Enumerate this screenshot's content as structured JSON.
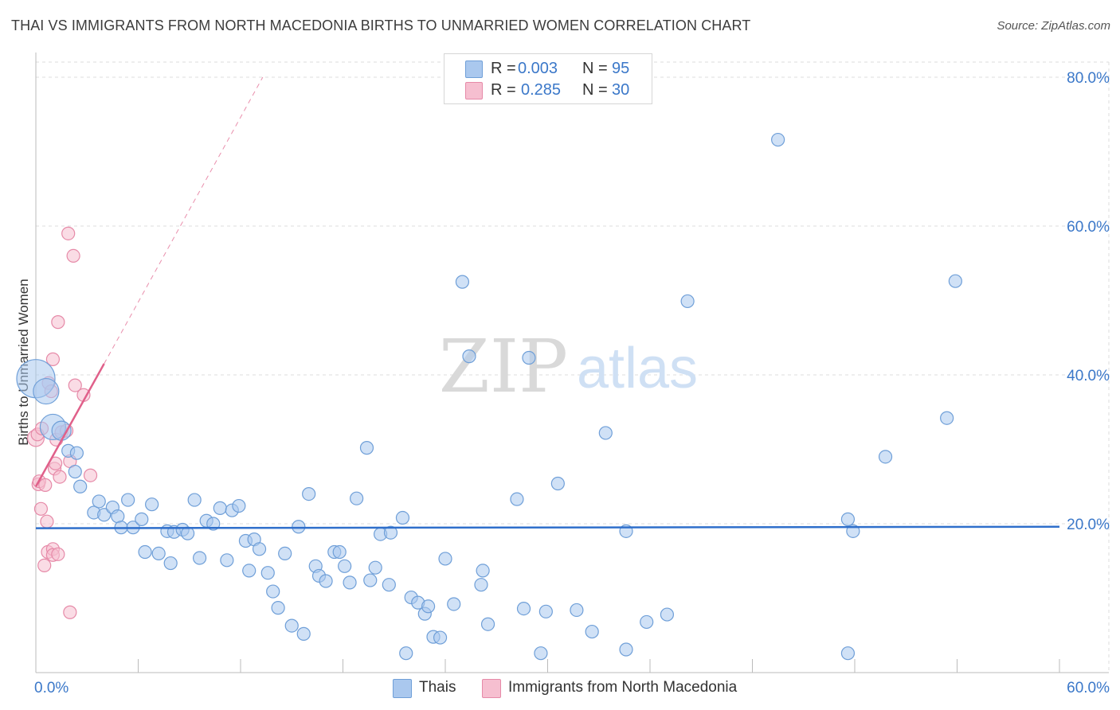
{
  "title": "THAI VS IMMIGRANTS FROM NORTH MACEDONIA BIRTHS TO UNMARRIED WOMEN CORRELATION CHART",
  "source": "Source: ZipAtlas.com",
  "watermark": {
    "zip": "ZIP",
    "atlas": "atlas"
  },
  "legend_top": [
    {
      "r_label": "R =",
      "r_value": "0.003",
      "n_label": "N =",
      "n_value": "95"
    },
    {
      "r_label": "R =",
      "r_value": "0.285",
      "n_label": "N =",
      "n_value": "30"
    }
  ],
  "colors": {
    "thais_fill": "#aac8ee",
    "thais_stroke": "#6f9fd8",
    "thais_line": "#2f6fcb",
    "mk_fill": "#f6bfd0",
    "mk_stroke": "#e68aa8",
    "mk_line": "#e0608a",
    "axis_text": "#3b78c9",
    "grid": "#dddddd"
  },
  "chart_data": {
    "type": "scatter",
    "title": "THAI VS IMMIGRANTS FROM NORTH MACEDONIA BIRTHS TO UNMARRIED WOMEN CORRELATION CHART",
    "xlabel": "",
    "ylabel": "Births to Unmarried Women",
    "xlim": [
      0,
      60
    ],
    "ylim": [
      0,
      82
    ],
    "x_tick_labels": [
      "0.0%",
      "60.0%"
    ],
    "y_tick_labels": [
      "20.0%",
      "40.0%",
      "60.0%",
      "80.0%"
    ],
    "y_ticks": [
      20,
      40,
      60,
      80
    ],
    "grid": true,
    "legend": "bottom-center",
    "series": [
      {
        "name": "Thais",
        "trend": {
          "x": [
            0,
            60
          ],
          "y": [
            19.4,
            19.6
          ]
        },
        "points": [
          {
            "x": 0.0,
            "y": 39.5,
            "s": 3
          },
          {
            "x": 0.6,
            "y": 37.8,
            "s": 2
          },
          {
            "x": 1.0,
            "y": 33.0,
            "s": 2
          },
          {
            "x": 1.5,
            "y": 32.5,
            "s": 1.5
          },
          {
            "x": 1.9,
            "y": 29.8,
            "s": 1
          },
          {
            "x": 2.4,
            "y": 29.5,
            "s": 1
          },
          {
            "x": 2.3,
            "y": 27.0,
            "s": 1
          },
          {
            "x": 2.6,
            "y": 25.0,
            "s": 1
          },
          {
            "x": 3.4,
            "y": 21.5,
            "s": 1
          },
          {
            "x": 3.7,
            "y": 23.0,
            "s": 1
          },
          {
            "x": 4.0,
            "y": 21.2,
            "s": 1
          },
          {
            "x": 4.5,
            "y": 22.2,
            "s": 1
          },
          {
            "x": 4.8,
            "y": 21.0,
            "s": 1
          },
          {
            "x": 5.0,
            "y": 19.5,
            "s": 1
          },
          {
            "x": 5.4,
            "y": 23.2,
            "s": 1
          },
          {
            "x": 5.7,
            "y": 19.5,
            "s": 1
          },
          {
            "x": 6.2,
            "y": 20.6,
            "s": 1
          },
          {
            "x": 6.4,
            "y": 16.2,
            "s": 1
          },
          {
            "x": 6.8,
            "y": 22.6,
            "s": 1
          },
          {
            "x": 7.2,
            "y": 16.0,
            "s": 1
          },
          {
            "x": 7.7,
            "y": 19.0,
            "s": 1
          },
          {
            "x": 7.9,
            "y": 14.7,
            "s": 1
          },
          {
            "x": 8.1,
            "y": 18.9,
            "s": 1
          },
          {
            "x": 8.6,
            "y": 19.2,
            "s": 1
          },
          {
            "x": 8.9,
            "y": 18.7,
            "s": 1
          },
          {
            "x": 9.3,
            "y": 23.2,
            "s": 1
          },
          {
            "x": 9.6,
            "y": 15.4,
            "s": 1
          },
          {
            "x": 10.0,
            "y": 20.4,
            "s": 1
          },
          {
            "x": 10.4,
            "y": 20.0,
            "s": 1
          },
          {
            "x": 10.8,
            "y": 22.1,
            "s": 1
          },
          {
            "x": 11.2,
            "y": 15.1,
            "s": 1
          },
          {
            "x": 11.5,
            "y": 21.8,
            "s": 1
          },
          {
            "x": 11.9,
            "y": 22.4,
            "s": 1
          },
          {
            "x": 12.3,
            "y": 17.7,
            "s": 1
          },
          {
            "x": 12.5,
            "y": 13.7,
            "s": 1
          },
          {
            "x": 12.8,
            "y": 17.9,
            "s": 1
          },
          {
            "x": 13.1,
            "y": 16.6,
            "s": 1
          },
          {
            "x": 13.6,
            "y": 13.4,
            "s": 1
          },
          {
            "x": 13.9,
            "y": 10.9,
            "s": 1
          },
          {
            "x": 14.2,
            "y": 8.7,
            "s": 1
          },
          {
            "x": 14.6,
            "y": 16.0,
            "s": 1
          },
          {
            "x": 15.0,
            "y": 6.3,
            "s": 1
          },
          {
            "x": 15.4,
            "y": 19.6,
            "s": 1
          },
          {
            "x": 15.7,
            "y": 5.2,
            "s": 1
          },
          {
            "x": 16.0,
            "y": 24.0,
            "s": 1
          },
          {
            "x": 16.4,
            "y": 14.3,
            "s": 1
          },
          {
            "x": 16.6,
            "y": 13.0,
            "s": 1
          },
          {
            "x": 17.0,
            "y": 12.3,
            "s": 1
          },
          {
            "x": 17.5,
            "y": 16.2,
            "s": 1
          },
          {
            "x": 17.8,
            "y": 16.2,
            "s": 1
          },
          {
            "x": 18.1,
            "y": 14.3,
            "s": 1
          },
          {
            "x": 18.4,
            "y": 12.1,
            "s": 1
          },
          {
            "x": 18.8,
            "y": 23.4,
            "s": 1
          },
          {
            "x": 19.4,
            "y": 30.2,
            "s": 1
          },
          {
            "x": 19.6,
            "y": 12.4,
            "s": 1
          },
          {
            "x": 19.9,
            "y": 14.1,
            "s": 1
          },
          {
            "x": 20.2,
            "y": 18.6,
            "s": 1
          },
          {
            "x": 20.7,
            "y": 11.8,
            "s": 1
          },
          {
            "x": 20.8,
            "y": 18.8,
            "s": 1
          },
          {
            "x": 21.5,
            "y": 20.8,
            "s": 1
          },
          {
            "x": 21.7,
            "y": 2.6,
            "s": 1
          },
          {
            "x": 22.0,
            "y": 10.1,
            "s": 1
          },
          {
            "x": 22.4,
            "y": 9.4,
            "s": 1
          },
          {
            "x": 22.8,
            "y": 7.9,
            "s": 1
          },
          {
            "x": 23.0,
            "y": 8.9,
            "s": 1
          },
          {
            "x": 23.3,
            "y": 4.8,
            "s": 1
          },
          {
            "x": 23.7,
            "y": 4.7,
            "s": 1
          },
          {
            "x": 24.0,
            "y": 15.3,
            "s": 1
          },
          {
            "x": 24.5,
            "y": 9.2,
            "s": 1
          },
          {
            "x": 25.0,
            "y": 52.5,
            "s": 1
          },
          {
            "x": 25.4,
            "y": 42.5,
            "s": 1
          },
          {
            "x": 26.1,
            "y": 11.8,
            "s": 1
          },
          {
            "x": 26.2,
            "y": 13.7,
            "s": 1
          },
          {
            "x": 26.5,
            "y": 6.5,
            "s": 1
          },
          {
            "x": 28.2,
            "y": 23.3,
            "s": 1
          },
          {
            "x": 28.6,
            "y": 8.6,
            "s": 1
          },
          {
            "x": 28.9,
            "y": 42.3,
            "s": 1
          },
          {
            "x": 29.6,
            "y": 2.6,
            "s": 1
          },
          {
            "x": 29.9,
            "y": 8.2,
            "s": 1
          },
          {
            "x": 30.6,
            "y": 25.4,
            "s": 1
          },
          {
            "x": 31.7,
            "y": 8.4,
            "s": 1
          },
          {
            "x": 32.6,
            "y": 5.5,
            "s": 1
          },
          {
            "x": 33.4,
            "y": 32.2,
            "s": 1
          },
          {
            "x": 34.6,
            "y": 19.0,
            "s": 1
          },
          {
            "x": 34.6,
            "y": 3.1,
            "s": 1
          },
          {
            "x": 35.8,
            "y": 6.8,
            "s": 1
          },
          {
            "x": 37.0,
            "y": 7.8,
            "s": 1
          },
          {
            "x": 38.2,
            "y": 49.9,
            "s": 1
          },
          {
            "x": 43.5,
            "y": 71.6,
            "s": 1
          },
          {
            "x": 47.6,
            "y": 20.6,
            "s": 1
          },
          {
            "x": 47.9,
            "y": 19.0,
            "s": 1
          },
          {
            "x": 47.6,
            "y": 2.6,
            "s": 1
          },
          {
            "x": 53.4,
            "y": 34.2,
            "s": 1
          },
          {
            "x": 53.9,
            "y": 52.6,
            "s": 1
          },
          {
            "x": 49.8,
            "y": 29.0,
            "s": 1
          }
        ]
      },
      {
        "name": "Immigrants from North Macedonia",
        "trend": {
          "x": [
            0,
            4
          ],
          "y": [
            25.0,
            41.5
          ]
        },
        "trend_extended": {
          "x": [
            4,
            13.3
          ],
          "y": [
            41.5,
            80
          ]
        },
        "points": [
          {
            "x": 0.0,
            "y": 31.5,
            "s": 1.3
          },
          {
            "x": 0.1,
            "y": 32.0,
            "s": 1
          },
          {
            "x": 0.15,
            "y": 25.3,
            "s": 1
          },
          {
            "x": 0.2,
            "y": 25.7,
            "s": 1
          },
          {
            "x": 0.3,
            "y": 22.0,
            "s": 1
          },
          {
            "x": 0.35,
            "y": 32.8,
            "s": 1
          },
          {
            "x": 0.5,
            "y": 14.4,
            "s": 1
          },
          {
            "x": 0.55,
            "y": 25.2,
            "s": 1
          },
          {
            "x": 0.65,
            "y": 20.3,
            "s": 1
          },
          {
            "x": 0.7,
            "y": 16.2,
            "s": 1
          },
          {
            "x": 0.75,
            "y": 38.9,
            "s": 1
          },
          {
            "x": 0.9,
            "y": 37.8,
            "s": 1
          },
          {
            "x": 1.0,
            "y": 16.6,
            "s": 1
          },
          {
            "x": 1.0,
            "y": 15.8,
            "s": 1
          },
          {
            "x": 1.1,
            "y": 27.4,
            "s": 1
          },
          {
            "x": 1.15,
            "y": 28.1,
            "s": 1
          },
          {
            "x": 1.0,
            "y": 42.1,
            "s": 1
          },
          {
            "x": 1.2,
            "y": 31.3,
            "s": 1
          },
          {
            "x": 1.3,
            "y": 15.9,
            "s": 1
          },
          {
            "x": 1.3,
            "y": 47.1,
            "s": 1
          },
          {
            "x": 1.4,
            "y": 26.3,
            "s": 1
          },
          {
            "x": 1.5,
            "y": 32.3,
            "s": 1
          },
          {
            "x": 1.9,
            "y": 59.0,
            "s": 1
          },
          {
            "x": 2.0,
            "y": 28.4,
            "s": 1
          },
          {
            "x": 2.0,
            "y": 8.1,
            "s": 1
          },
          {
            "x": 2.2,
            "y": 56.0,
            "s": 1
          },
          {
            "x": 2.3,
            "y": 38.6,
            "s": 1
          },
          {
            "x": 2.8,
            "y": 37.3,
            "s": 1
          },
          {
            "x": 3.2,
            "y": 26.5,
            "s": 1
          },
          {
            "x": 1.8,
            "y": 32.5,
            "s": 1
          }
        ]
      }
    ]
  },
  "bottom_legend": [
    "Thais",
    "Immigrants from North Macedonia"
  ]
}
